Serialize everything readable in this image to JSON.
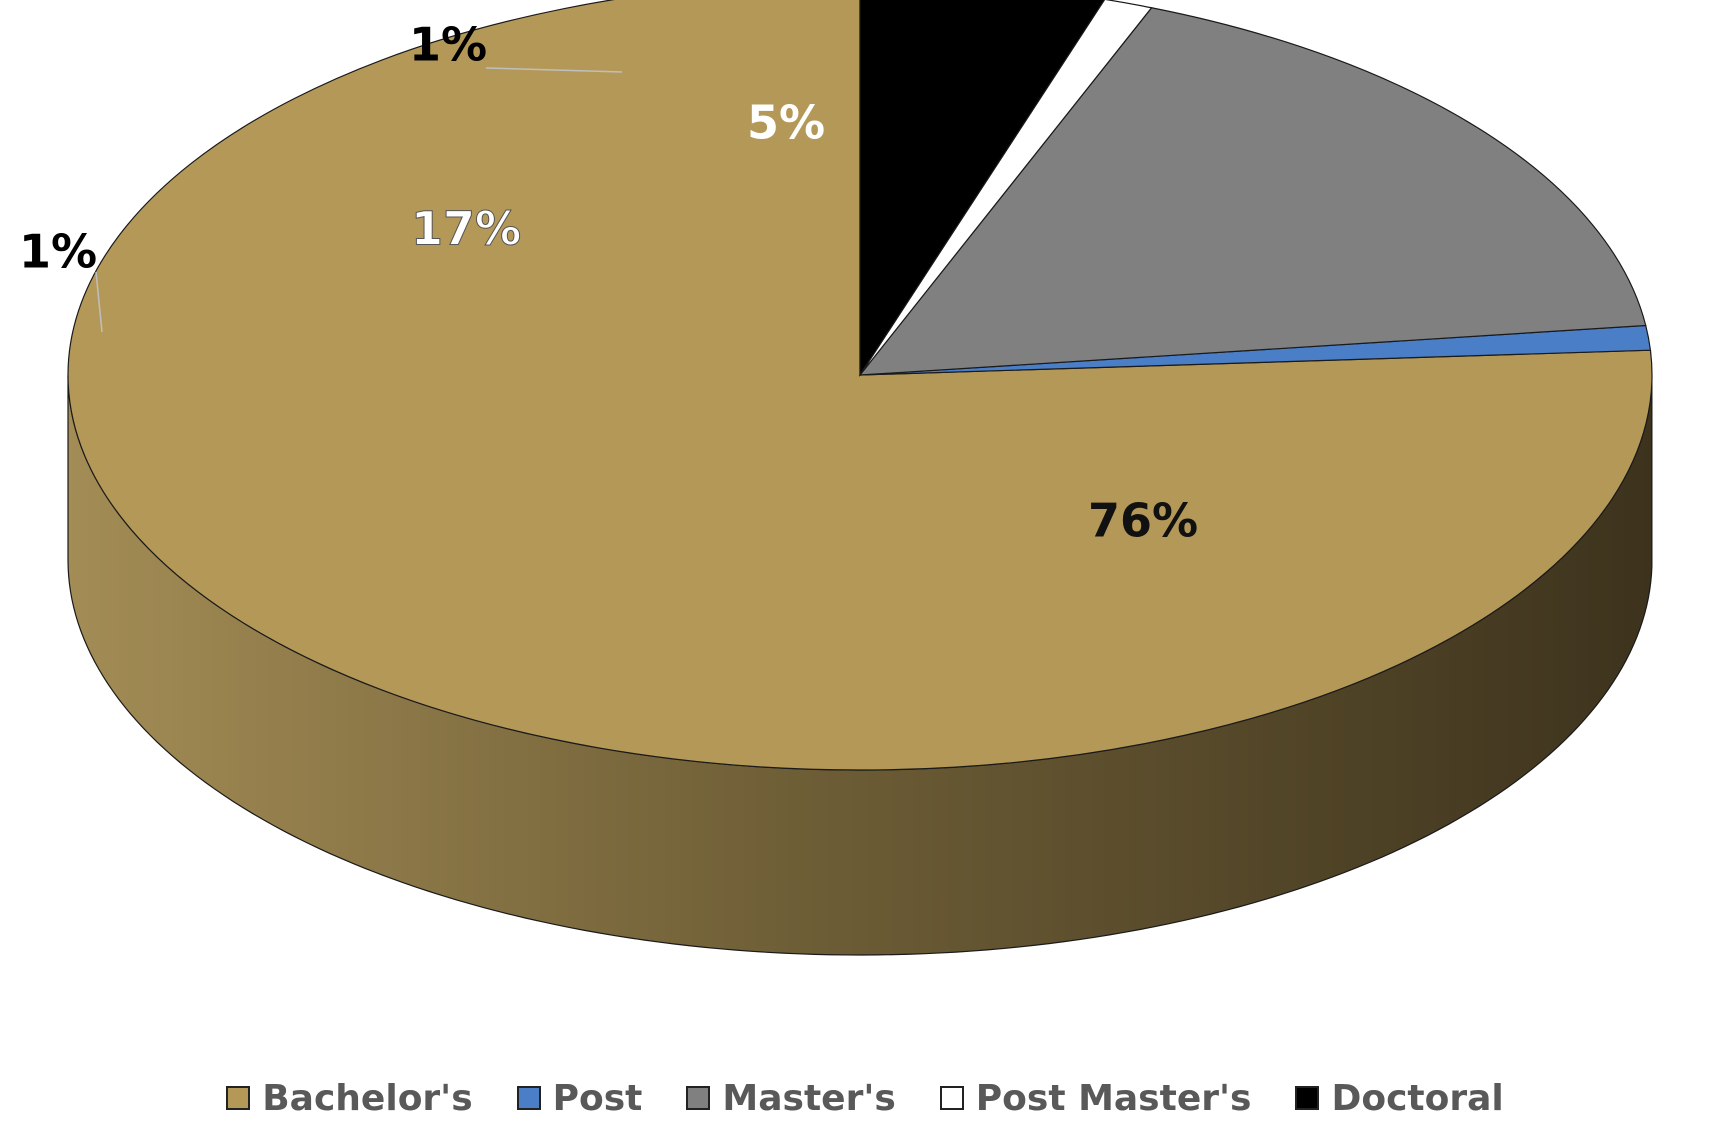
{
  "chart_data": {
    "type": "pie",
    "categories": [
      "Bachelor's",
      "Post",
      "Master's",
      "Post Master's",
      "Doctoral"
    ],
    "values": [
      76,
      1,
      17,
      1,
      5
    ],
    "data_labels": [
      "76%",
      "1%",
      "17%",
      "1%",
      "5%"
    ],
    "colors": [
      "#b49857",
      "#4a7ec6",
      "#808080",
      "#ffffff",
      "#000000"
    ],
    "label_colors": [
      "#111111",
      "#000000",
      "#ffffff",
      "#000000",
      "#ffffff"
    ],
    "style": "3d",
    "legend_position": "bottom",
    "title": ""
  }
}
